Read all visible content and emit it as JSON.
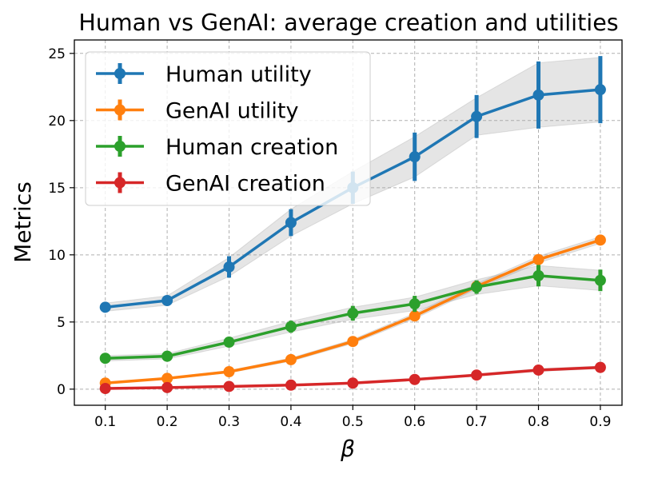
{
  "chart_data": {
    "type": "line",
    "title": "Human vs GenAI: average creation and utilities",
    "xlabel": "β",
    "ylabel": "Metrics",
    "x": [
      0.1,
      0.2,
      0.3,
      0.4,
      0.5,
      0.6,
      0.7,
      0.8,
      0.9
    ],
    "x_tick_labels": [
      "0.1",
      "0.2",
      "0.3",
      "0.4",
      "0.5",
      "0.6",
      "0.7",
      "0.8",
      "0.9"
    ],
    "xlim": [
      0.05,
      0.935
    ],
    "ylim": [
      -1.2,
      26.0
    ],
    "y_ticks": [
      0,
      5,
      10,
      15,
      20,
      25
    ],
    "y_tick_labels": [
      "0",
      "5",
      "10",
      "15",
      "20",
      "25"
    ],
    "grid": true,
    "grid_style": "dashed",
    "legend_position": "top-left",
    "series": [
      {
        "name": "Human utility",
        "color": "#1f77b4",
        "values": [
          6.1,
          6.6,
          9.1,
          12.4,
          15.0,
          17.3,
          20.3,
          21.9,
          22.3
        ],
        "err": [
          0.2,
          0.3,
          0.8,
          1.0,
          1.2,
          1.8,
          1.6,
          2.5,
          2.5
        ],
        "band": [
          0.3,
          0.35,
          0.7,
          1.0,
          1.2,
          1.5,
          1.4,
          2.4,
          2.4
        ]
      },
      {
        "name": "GenAI utility",
        "color": "#ff7f0e",
        "values": [
          0.45,
          0.8,
          1.3,
          2.2,
          3.55,
          5.45,
          7.65,
          9.65,
          11.1
        ],
        "err": [
          0.05,
          0.05,
          0.08,
          0.12,
          0.15,
          0.25,
          0.25,
          0.3,
          0.3
        ],
        "band": [
          0.05,
          0.05,
          0.08,
          0.12,
          0.15,
          0.2,
          0.2,
          0.25,
          0.25
        ]
      },
      {
        "name": "Human creation",
        "color": "#2ca02c",
        "values": [
          2.3,
          2.45,
          3.5,
          4.65,
          5.65,
          6.35,
          7.6,
          8.45,
          8.1
        ],
        "err": [
          0.15,
          0.2,
          0.35,
          0.45,
          0.55,
          0.6,
          0.5,
          0.8,
          0.8
        ],
        "band": [
          0.2,
          0.2,
          0.3,
          0.4,
          0.45,
          0.5,
          0.55,
          0.75,
          0.75
        ]
      },
      {
        "name": "GenAI creation",
        "color": "#d62728",
        "values": [
          0.05,
          0.12,
          0.2,
          0.3,
          0.45,
          0.72,
          1.05,
          1.42,
          1.62
        ],
        "err": [
          0.05,
          0.05,
          0.05,
          0.05,
          0.08,
          0.08,
          0.1,
          0.12,
          0.12
        ],
        "band": [
          0.04,
          0.04,
          0.05,
          0.05,
          0.06,
          0.07,
          0.08,
          0.1,
          0.1
        ]
      }
    ]
  }
}
